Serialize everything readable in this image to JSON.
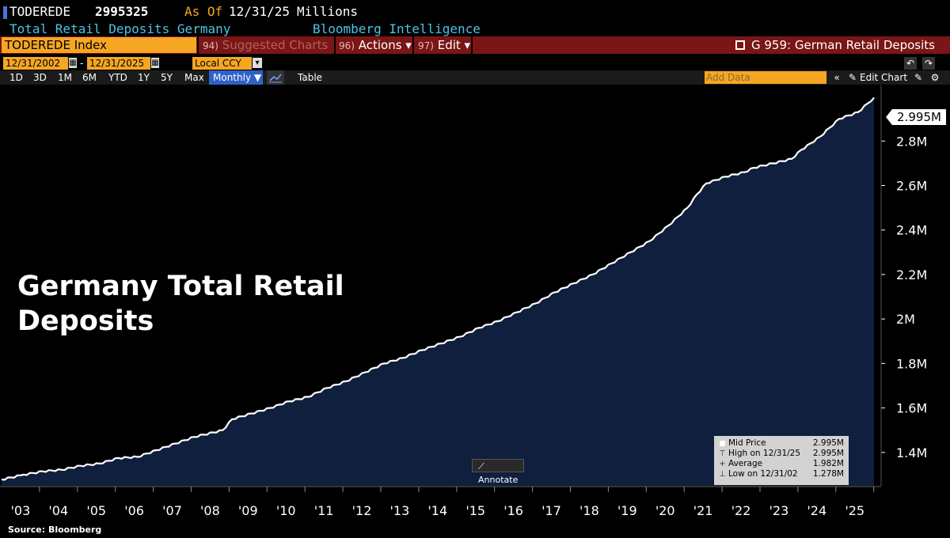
{
  "header": {
    "ticker": "TODEREDE",
    "last_value": "2995325",
    "as_of_label": "As Of",
    "as_of_date": "12/31/25",
    "units": "Millions",
    "description": "Total Retail Deposits Germany",
    "provider": "Bloomberg Intelligence"
  },
  "toolbar": {
    "security": "TODEREDE Index",
    "suggested_num": "94)",
    "suggested_label": "Suggested Charts",
    "actions_num": "96)",
    "actions_label": "Actions ▾",
    "edit_num": "97)",
    "edit_label": "Edit ▾",
    "function_label": "G 959: German Retail Deposits"
  },
  "date_range": {
    "start": "12/31/2002",
    "end": "12/31/2025",
    "currency": "Local CCY"
  },
  "periods": [
    "1D",
    "3D",
    "1M",
    "6M",
    "YTD",
    "1Y",
    "5Y",
    "Max"
  ],
  "frequency": "Monthly ▼",
  "table_label": "Table",
  "add_data_placeholder": "Add Data",
  "edit_chart_label": "Edit Chart",
  "overlay_title": "Germany Total Retail Deposits",
  "last_price_tag": "2.995M",
  "annotate_label": "Annotate",
  "legend": {
    "mid_label": "Mid Price",
    "mid_value": "2.995M",
    "high_label": "High on 12/31/25",
    "high_value": "2.995M",
    "avg_label": "Average",
    "avg_value": "1.982M",
    "low_label": "Low on 12/31/02",
    "low_value": "1.278M"
  },
  "source": "Source: Bloomberg",
  "colors": {
    "accent_orange": "#f5a623",
    "toolbar_red": "#7a1616",
    "area_fill": "#0f1f3d",
    "line": "#ffffff",
    "header_cyan": "#4fc3e4"
  },
  "chart_data": {
    "type": "area",
    "title": "",
    "xlabel": "",
    "ylabel": "",
    "x_tick_labels": [
      "'03",
      "'04",
      "'05",
      "'06",
      "'07",
      "'08",
      "'09",
      "'10",
      "'11",
      "'12",
      "'13",
      "'14",
      "'15",
      "'16",
      "'17",
      "'18",
      "'19",
      "'20",
      "'21",
      "'22",
      "'23",
      "'24",
      "'25"
    ],
    "y_tick_labels": [
      "1.4M",
      "1.6M",
      "1.8M",
      "2M",
      "2.2M",
      "2.4M",
      "2.6M",
      "2.8M"
    ],
    "y_tick_values": [
      1400000,
      1600000,
      1800000,
      2000000,
      2200000,
      2400000,
      2600000,
      2800000
    ],
    "ylim": [
      1250000,
      3050000
    ],
    "xlim": [
      2002.95,
      2026.5
    ],
    "series": [
      {
        "x": [
          2002.92,
          2003.5,
          2004.0,
          2004.5,
          2005.0,
          2005.5,
          2006.0,
          2006.5,
          2007.0,
          2007.5,
          2008.0,
          2008.5,
          2008.75,
          2009.0,
          2009.5,
          2010.0,
          2010.5,
          2011.0,
          2011.5,
          2012.0,
          2012.5,
          2013.0,
          2013.5,
          2014.0,
          2014.5,
          2015.0,
          2015.5,
          2016.0,
          2016.5,
          2017.0,
          2017.5,
          2018.0,
          2018.5,
          2019.0,
          2019.5,
          2020.0,
          2020.5,
          2021.0,
          2021.25,
          2021.5,
          2022.0,
          2022.5,
          2022.75,
          2023.0,
          2023.5,
          2023.75,
          2024.0,
          2024.5,
          2024.75,
          2025.0,
          2025.5,
          2025.92
        ],
        "values": [
          1278000,
          1300000,
          1315000,
          1322000,
          1340000,
          1350000,
          1375000,
          1380000,
          1410000,
          1440000,
          1470000,
          1490000,
          1500000,
          1550000,
          1575000,
          1600000,
          1630000,
          1650000,
          1690000,
          1720000,
          1760000,
          1800000,
          1825000,
          1860000,
          1890000,
          1920000,
          1960000,
          1990000,
          2030000,
          2070000,
          2120000,
          2160000,
          2200000,
          2250000,
          2300000,
          2350000,
          2420000,
          2500000,
          2560000,
          2610000,
          2640000,
          2660000,
          2680000,
          2690000,
          2710000,
          2720000,
          2760000,
          2820000,
          2860000,
          2900000,
          2930000,
          2995325
        ]
      }
    ],
    "grid": false,
    "legend_position": "bottom-right"
  }
}
